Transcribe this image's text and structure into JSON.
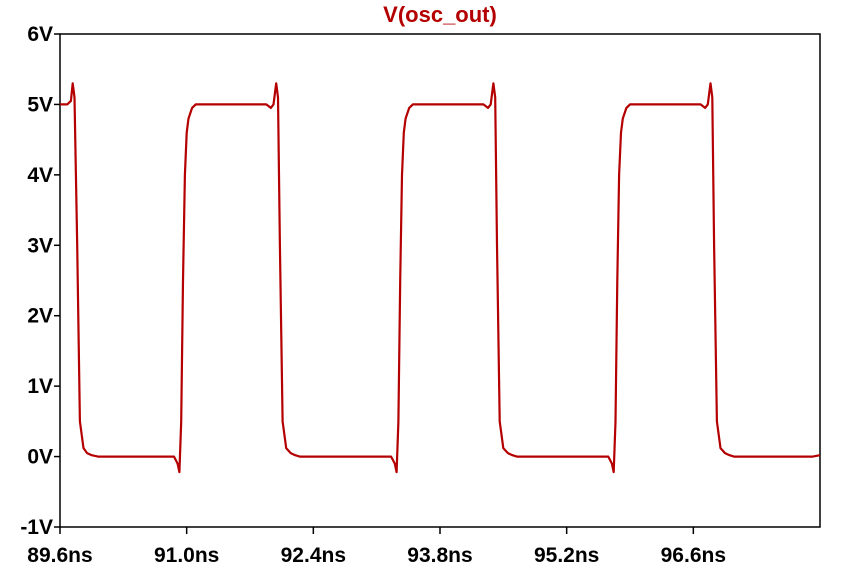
{
  "chart_data": {
    "type": "line",
    "title": "V(osc_out)",
    "xlabel": "",
    "ylabel": "",
    "xlim": [
      89.6,
      98.0
    ],
    "ylim": [
      -1,
      6
    ],
    "grid": false,
    "xticks": [
      89.6,
      91.0,
      92.4,
      93.8,
      95.2,
      96.6
    ],
    "xtick_labels": [
      "89.6ns",
      "91.0ns",
      "92.4ns",
      "93.8ns",
      "95.2ns",
      "96.6ns"
    ],
    "yticks": [
      6,
      5,
      4,
      3,
      2,
      1,
      0,
      -1
    ],
    "ytick_labels": [
      "6V",
      "5V",
      "4V",
      "3V",
      "2V",
      "1V",
      "0V",
      "-1V"
    ],
    "series": [
      {
        "name": "V(osc_out)",
        "color": "#b40000",
        "x": [
          89.6,
          89.68,
          89.72,
          89.74,
          89.76,
          89.79,
          89.82,
          89.86,
          89.9,
          89.95,
          90.02,
          90.1,
          90.2,
          90.35,
          90.5,
          90.7,
          90.86,
          90.9,
          90.92,
          90.94,
          90.96,
          90.98,
          91.0,
          91.02,
          91.06,
          91.1,
          91.15,
          91.2,
          91.3,
          91.5,
          91.7,
          91.88,
          91.93,
          91.96,
          91.99,
          92.01,
          92.03,
          92.06,
          92.1,
          92.15,
          92.2,
          92.25,
          92.3,
          92.35,
          92.4,
          92.5,
          92.7,
          92.9,
          93.0,
          93.12,
          93.2,
          93.26,
          93.3,
          93.32,
          93.34,
          93.36,
          93.38,
          93.4,
          93.42,
          93.46,
          93.5,
          93.55,
          93.6,
          93.7,
          93.9,
          94.1,
          94.28,
          94.33,
          94.36,
          94.39,
          94.41,
          94.43,
          94.46,
          94.5,
          94.55,
          94.6,
          94.65,
          94.7,
          94.75,
          94.8,
          94.9,
          95.1,
          95.3,
          95.4,
          95.52,
          95.6,
          95.66,
          95.7,
          95.72,
          95.74,
          95.76,
          95.78,
          95.8,
          95.82,
          95.86,
          95.9,
          95.95,
          96.0,
          96.1,
          96.3,
          96.5,
          96.68,
          96.73,
          96.76,
          96.79,
          96.81,
          96.83,
          96.86,
          96.9,
          96.95,
          97.0,
          97.05,
          97.1,
          97.15,
          97.2,
          97.3,
          97.5,
          97.7,
          97.8,
          97.92,
          98.0
        ],
        "y": [
          5.0,
          5.0,
          5.05,
          5.3,
          5.1,
          3.0,
          0.5,
          0.12,
          0.05,
          0.02,
          0.0,
          0.0,
          0.0,
          0.0,
          0.0,
          0.0,
          0.0,
          -0.1,
          -0.22,
          0.5,
          2.5,
          4.0,
          4.6,
          4.8,
          4.95,
          5.0,
          5.0,
          5.0,
          5.0,
          5.0,
          5.0,
          5.0,
          4.95,
          5.0,
          5.3,
          5.1,
          3.0,
          0.5,
          0.12,
          0.05,
          0.02,
          0.0,
          0.0,
          0.0,
          0.0,
          0.0,
          0.0,
          0.0,
          0.0,
          0.0,
          0.0,
          0.0,
          -0.1,
          -0.22,
          0.5,
          2.5,
          4.0,
          4.6,
          4.8,
          4.95,
          5.0,
          5.0,
          5.0,
          5.0,
          5.0,
          5.0,
          5.0,
          4.95,
          5.0,
          5.3,
          5.1,
          3.0,
          0.5,
          0.12,
          0.05,
          0.02,
          0.0,
          0.0,
          0.0,
          0.0,
          0.0,
          0.0,
          0.0,
          0.0,
          0.0,
          0.0,
          0.0,
          -0.1,
          -0.22,
          0.5,
          2.5,
          4.0,
          4.6,
          4.8,
          4.95,
          5.0,
          5.0,
          5.0,
          5.0,
          5.0,
          5.0,
          5.0,
          4.95,
          5.0,
          5.3,
          5.1,
          3.0,
          0.5,
          0.12,
          0.05,
          0.02,
          0.0,
          0.0,
          0.0,
          0.0,
          0.0,
          0.0,
          0.0,
          0.0,
          0.0,
          0.02
        ]
      }
    ]
  }
}
